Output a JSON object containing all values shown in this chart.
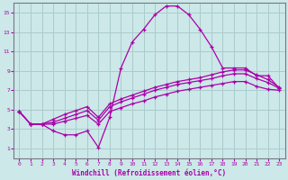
{
  "xlabel": "Windchill (Refroidissement éolien,°C)",
  "xlim": [
    -0.5,
    23.5
  ],
  "ylim": [
    0,
    16
  ],
  "xticks": [
    0,
    1,
    2,
    3,
    4,
    5,
    6,
    7,
    8,
    9,
    10,
    11,
    12,
    13,
    14,
    15,
    16,
    17,
    18,
    19,
    20,
    21,
    22,
    23
  ],
  "yticks": [
    1,
    3,
    5,
    7,
    9,
    11,
    13,
    15
  ],
  "background_color": "#cce8e8",
  "grid_color": "#aacccc",
  "line_color": "#aa00aa",
  "series1_x": [
    0,
    1,
    2,
    3,
    4,
    5,
    6,
    7,
    8,
    9,
    10,
    11,
    12,
    13,
    14,
    15,
    16,
    17,
    18,
    19,
    20,
    21,
    22,
    23
  ],
  "series1_y": [
    4.8,
    3.5,
    3.5,
    2.8,
    2.4,
    2.4,
    2.8,
    1.1,
    4.2,
    9.3,
    12.0,
    13.3,
    14.8,
    15.7,
    15.7,
    14.8,
    13.3,
    11.5,
    9.3,
    9.3,
    9.3,
    8.5,
    8.5,
    7.2
  ],
  "series2_x": [
    0,
    1,
    2,
    3,
    4,
    5,
    6,
    7,
    8,
    9,
    10,
    11,
    12,
    13,
    14,
    15,
    16,
    17,
    18,
    19,
    20,
    21,
    22,
    23
  ],
  "series2_y": [
    4.8,
    3.5,
    3.5,
    4.0,
    4.5,
    4.9,
    5.3,
    4.2,
    5.6,
    6.1,
    6.5,
    6.9,
    7.3,
    7.6,
    7.9,
    8.1,
    8.3,
    8.6,
    8.9,
    9.1,
    9.1,
    8.6,
    8.1,
    7.3
  ],
  "series3_x": [
    0,
    1,
    2,
    3,
    4,
    5,
    6,
    7,
    8,
    9,
    10,
    11,
    12,
    13,
    14,
    15,
    16,
    17,
    18,
    19,
    20,
    21,
    22,
    23
  ],
  "series3_y": [
    4.8,
    3.5,
    3.5,
    3.7,
    4.1,
    4.5,
    4.9,
    3.9,
    5.3,
    5.8,
    6.2,
    6.6,
    7.0,
    7.3,
    7.6,
    7.8,
    8.0,
    8.2,
    8.5,
    8.7,
    8.7,
    8.2,
    7.8,
    7.2
  ],
  "series4_x": [
    0,
    1,
    2,
    3,
    4,
    5,
    6,
    7,
    8,
    9,
    10,
    11,
    12,
    13,
    14,
    15,
    16,
    17,
    18,
    19,
    20,
    21,
    22,
    23
  ],
  "series4_y": [
    4.8,
    3.5,
    3.5,
    3.5,
    3.8,
    4.1,
    4.4,
    3.5,
    4.8,
    5.2,
    5.6,
    5.9,
    6.3,
    6.6,
    6.9,
    7.1,
    7.3,
    7.5,
    7.7,
    7.9,
    7.9,
    7.4,
    7.1,
    7.0
  ]
}
